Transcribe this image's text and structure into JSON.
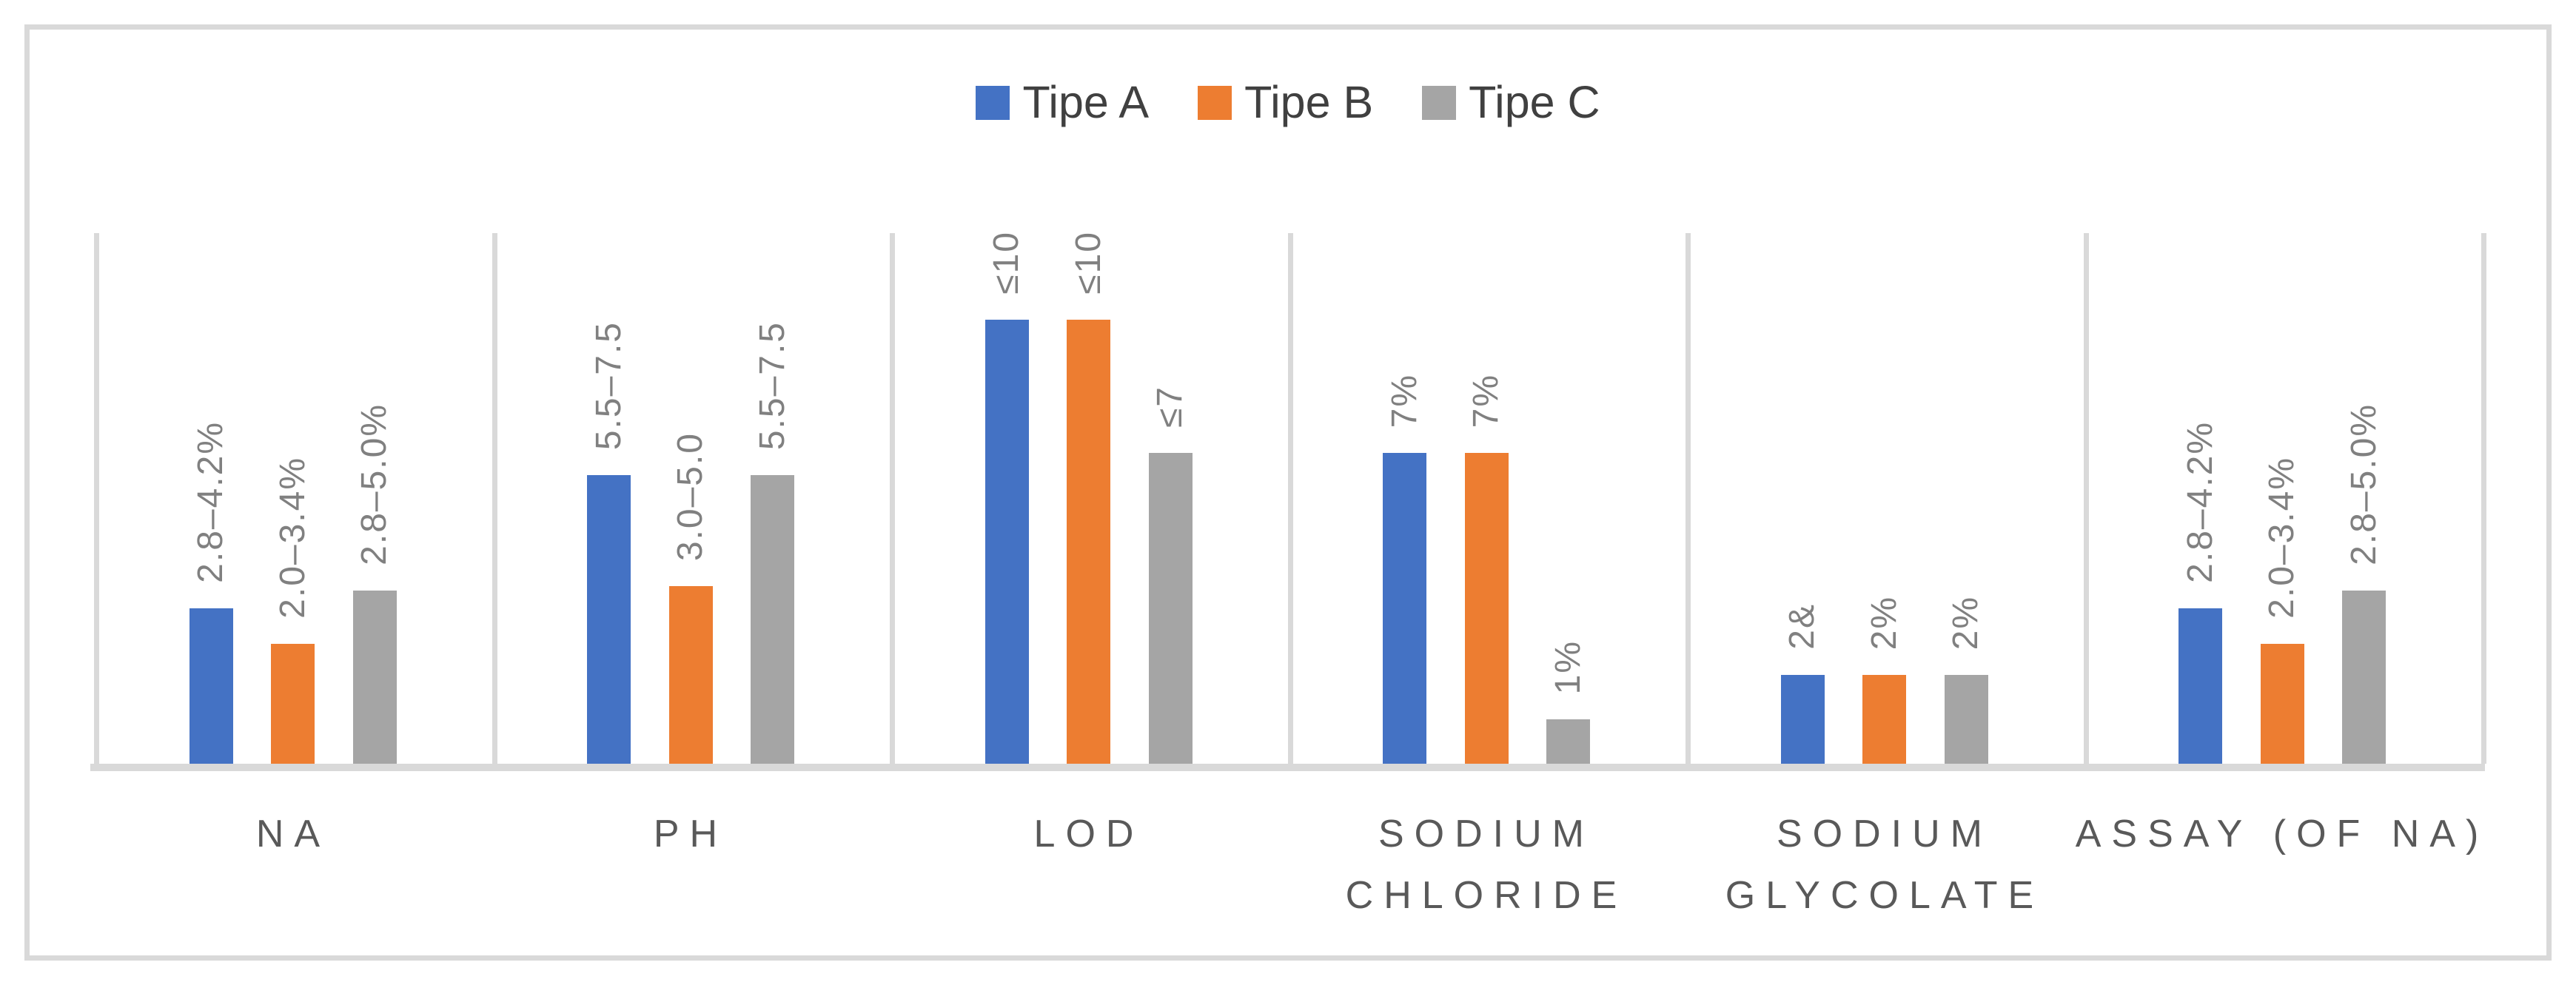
{
  "legend": {
    "position": "top-center",
    "items": [
      {
        "label": "Tipe A",
        "color": "#4472c4"
      },
      {
        "label": "Tipe B",
        "color": "#ed7d31"
      },
      {
        "label": "Tipe C",
        "color": "#a5a5a5"
      }
    ]
  },
  "chart_data": {
    "type": "bar",
    "title": "",
    "xlabel": "",
    "ylabel": "",
    "ylim": [
      0,
      12
    ],
    "y_axis_visible": false,
    "gridlines": "vertical category separators only",
    "legend_position": "top",
    "categories": [
      "NA",
      "PH",
      "LOD",
      "SODIUM CHLORIDE",
      "SODIUM GLYCOLATE",
      "ASSAY (OF NA)"
    ],
    "category_label_lines": [
      [
        "NA"
      ],
      [
        "PH"
      ],
      [
        "LOD"
      ],
      [
        "SODIUM",
        "CHLORIDE"
      ],
      [
        "SODIUM",
        "GLYCOLATE"
      ],
      [
        "ASSAY (OF NA)"
      ]
    ],
    "series": [
      {
        "name": "Tipe A",
        "color": "#4472c4",
        "values": [
          3.5,
          6.5,
          10,
          7,
          2,
          3.5
        ],
        "labels": [
          "2.8–4.2%",
          "5.5–7.5",
          "≤10",
          "7%",
          "2&",
          "2.8–4.2%"
        ]
      },
      {
        "name": "Tipe B",
        "color": "#ed7d31",
        "values": [
          2.7,
          4.0,
          10,
          7,
          2,
          2.7
        ],
        "labels": [
          "2.0–3.4%",
          "3.0–5.0",
          "≤10",
          "7%",
          "2%",
          "2.0–3.4%"
        ]
      },
      {
        "name": "Tipe C",
        "color": "#a5a5a5",
        "values": [
          3.9,
          6.5,
          7,
          1,
          2,
          3.9
        ],
        "labels": [
          "2.8–5.0%",
          "5.5–7.5",
          "≤7",
          "1%",
          "2%",
          "2.8–5.0%"
        ]
      }
    ]
  },
  "colors": {
    "frame_border": "#d9d9d9",
    "axis_line": "#d9d9d9",
    "separator_line": "#d9d9d9",
    "data_label_text": "#808080",
    "category_label_text": "#595959",
    "legend_text": "#404040",
    "background": "#ffffff"
  }
}
